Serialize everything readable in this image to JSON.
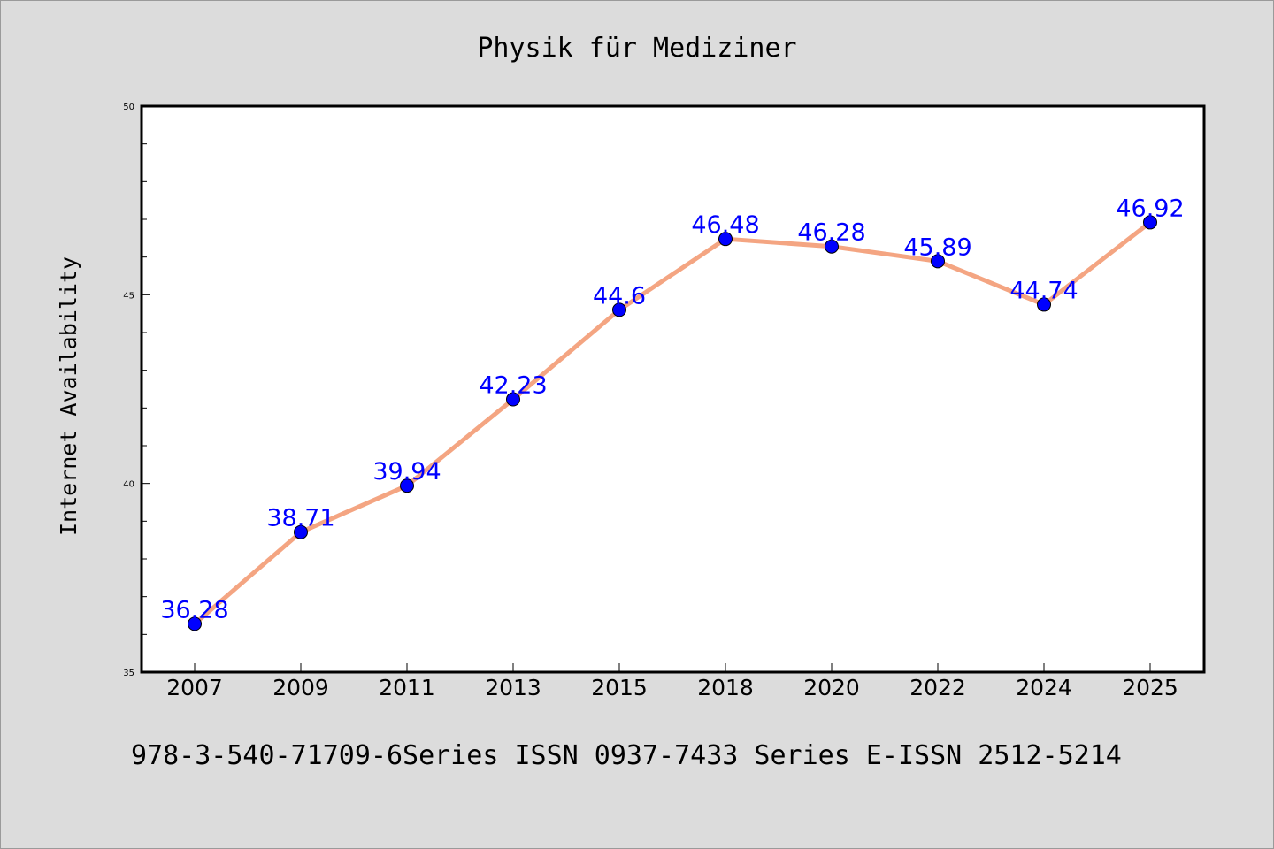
{
  "chart_data": {
    "type": "line",
    "title": "Physik für Mediziner",
    "xlabel": "",
    "ylabel": "Internet Availability",
    "categories": [
      "2007",
      "2009",
      "2011",
      "2013",
      "2015",
      "2018",
      "2020",
      "2022",
      "2024",
      "2025"
    ],
    "series": [
      {
        "values": [
          36.28,
          38.71,
          39.94,
          42.23,
          44.6,
          46.48,
          46.28,
          45.89,
          44.74,
          46.92
        ],
        "labels": [
          "36.28",
          "38.71",
          "39.94",
          "42.23",
          "44.6",
          "46.48",
          "46.28",
          "45.89",
          "44.74",
          "46.92"
        ],
        "line_color": "#f4a582",
        "marker_color": "#0000ff"
      }
    ],
    "ylim": [
      35,
      50
    ],
    "yticks": [
      "35",
      "40",
      "45",
      "50"
    ],
    "grid": false,
    "legend": "none"
  },
  "footer": {
    "text": "978-3-540-71709-6Series ISSN 0937-7433 Series E-ISSN 2512-5214"
  },
  "colors": {
    "background": "#dcdcdc",
    "plot_background": "#ffffff",
    "data_label": "#0000ff"
  }
}
